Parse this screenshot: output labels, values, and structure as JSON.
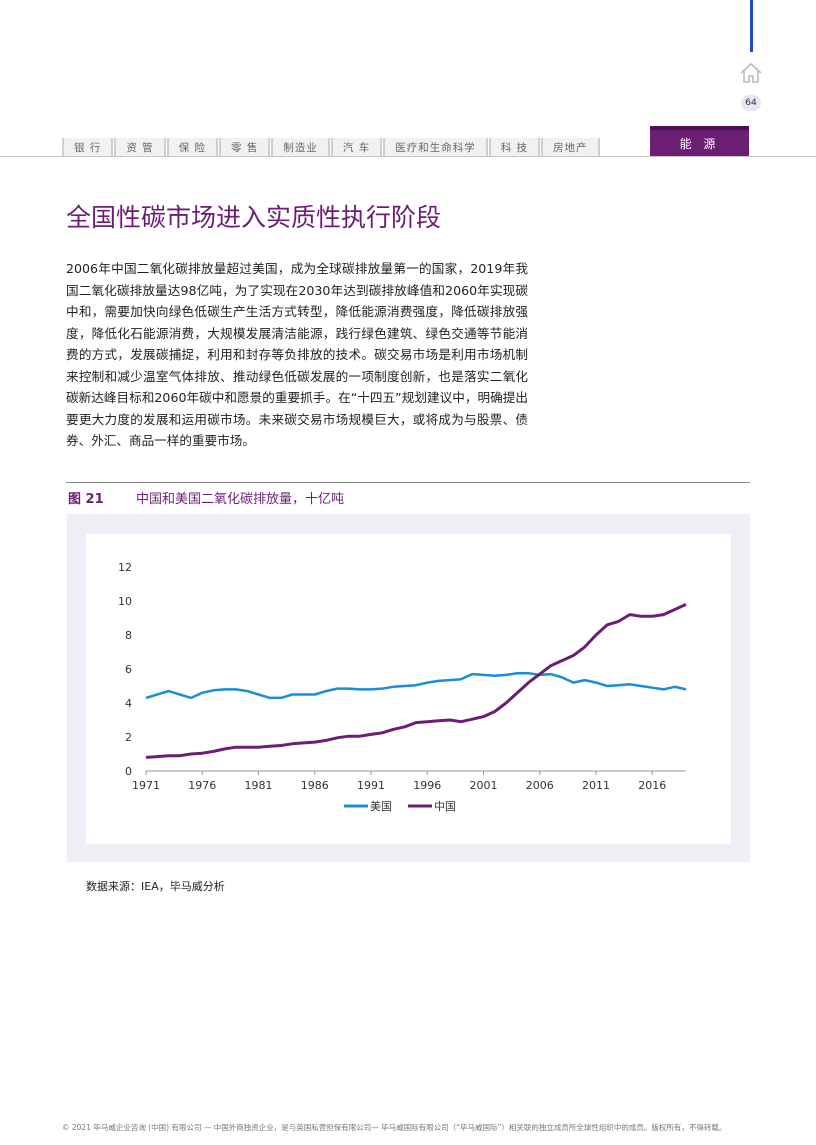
{
  "header": {
    "page_number": "64",
    "nav_tabs": [
      "银 行",
      "资 管",
      "保 险",
      "零 售",
      "制造业",
      "汽 车",
      "医疗和生命科学",
      "科 技",
      "房地产"
    ],
    "active_tab": "能 源"
  },
  "title": "全国性碳市场进入实质性执行阶段",
  "body_paragraphs": [
    "2006年中国二氧化碳排放量超过美国，成为全球碳排放量第一的国家，2019年我国二氧化碳排放量达98亿吨，为了实现在2030年达到碳排放峰值和2060年实现碳中和，需要加快向绿色低碳生产生活方式转型，降低能源消费强度，降低碳排放强度，降低化石能源消费，大规模发展清洁能源，践行绿色建筑、绿色交通等节能消费的方式，发展碳捕捉，利用和封存等负排放的技术。碳交易市场是利用市场机制来控制和减少温室气体排放、推动绿色低碳发展的一项制度创新，也是落实二氧化碳新达峰目标和2060年碳中和愿景的重要抓手。在“十四五”规划建议中，明确提出要更大力度的发展和运用碳市场。未来碳交易市场规模巨大，或将成为与股票、债券、外汇、商品一样的重要市场。"
  ],
  "figure": {
    "label": "图 21",
    "title": "中国和美国二氧化碳排放量，十亿吨",
    "source": "数据来源：IEA，毕马威分析"
  },
  "chart_data": {
    "type": "line",
    "title": "中国和美国二氧化碳排放量，十亿吨",
    "xlabel": "",
    "ylabel": "",
    "ylim": [
      0,
      12
    ],
    "yticks": [
      "0",
      "2",
      "4",
      "6",
      "8",
      "10",
      "12"
    ],
    "xticks": [
      "1971",
      "1976",
      "1981",
      "1986",
      "1991",
      "1996",
      "2001",
      "2006",
      "2011",
      "2016"
    ],
    "x": [
      1971,
      1972,
      1973,
      1974,
      1975,
      1976,
      1977,
      1978,
      1979,
      1980,
      1981,
      1982,
      1983,
      1984,
      1985,
      1986,
      1987,
      1988,
      1989,
      1990,
      1991,
      1992,
      1993,
      1994,
      1995,
      1996,
      1997,
      1998,
      1999,
      2000,
      2001,
      2002,
      2003,
      2004,
      2005,
      2006,
      2007,
      2008,
      2009,
      2010,
      2011,
      2012,
      2013,
      2014,
      2015,
      2016,
      2017,
      2018,
      2019
    ],
    "series": [
      {
        "name": "美国",
        "color": "#1a8fd6",
        "values": [
          4.3,
          4.5,
          4.7,
          4.5,
          4.3,
          4.6,
          4.75,
          4.8,
          4.8,
          4.7,
          4.5,
          4.3,
          4.3,
          4.5,
          4.5,
          4.5,
          4.7,
          4.85,
          4.85,
          4.8,
          4.8,
          4.85,
          4.95,
          5.0,
          5.05,
          5.2,
          5.3,
          5.35,
          5.4,
          5.7,
          5.65,
          5.6,
          5.65,
          5.75,
          5.75,
          5.65,
          5.7,
          5.5,
          5.2,
          5.35,
          5.2,
          5.0,
          5.05,
          5.1,
          5.0,
          4.9,
          4.8,
          4.95,
          4.8
        ]
      },
      {
        "name": "中国",
        "color": "#6c1d74",
        "values": [
          0.8,
          0.85,
          0.9,
          0.9,
          1.0,
          1.05,
          1.15,
          1.3,
          1.4,
          1.4,
          1.4,
          1.45,
          1.5,
          1.6,
          1.65,
          1.7,
          1.8,
          1.95,
          2.05,
          2.05,
          2.15,
          2.25,
          2.45,
          2.6,
          2.85,
          2.9,
          2.95,
          3.0,
          2.9,
          3.05,
          3.2,
          3.5,
          4.0,
          4.6,
          5.2,
          5.7,
          6.2,
          6.5,
          6.8,
          7.3,
          8.0,
          8.6,
          8.8,
          9.2,
          9.1,
          9.1,
          9.2,
          9.5,
          9.8
        ]
      }
    ],
    "legend": "bottom-center",
    "grid": false
  },
  "footer": "© 2021 毕马威企业咨询 (中国) 有限公司 — 中国外商独资企业，是与英国私营担保有限公司— 毕马威国际有限公司（“毕马威国际”）相关联的独立成员所全球性组织中的成员。版权所有，不得转载。"
}
